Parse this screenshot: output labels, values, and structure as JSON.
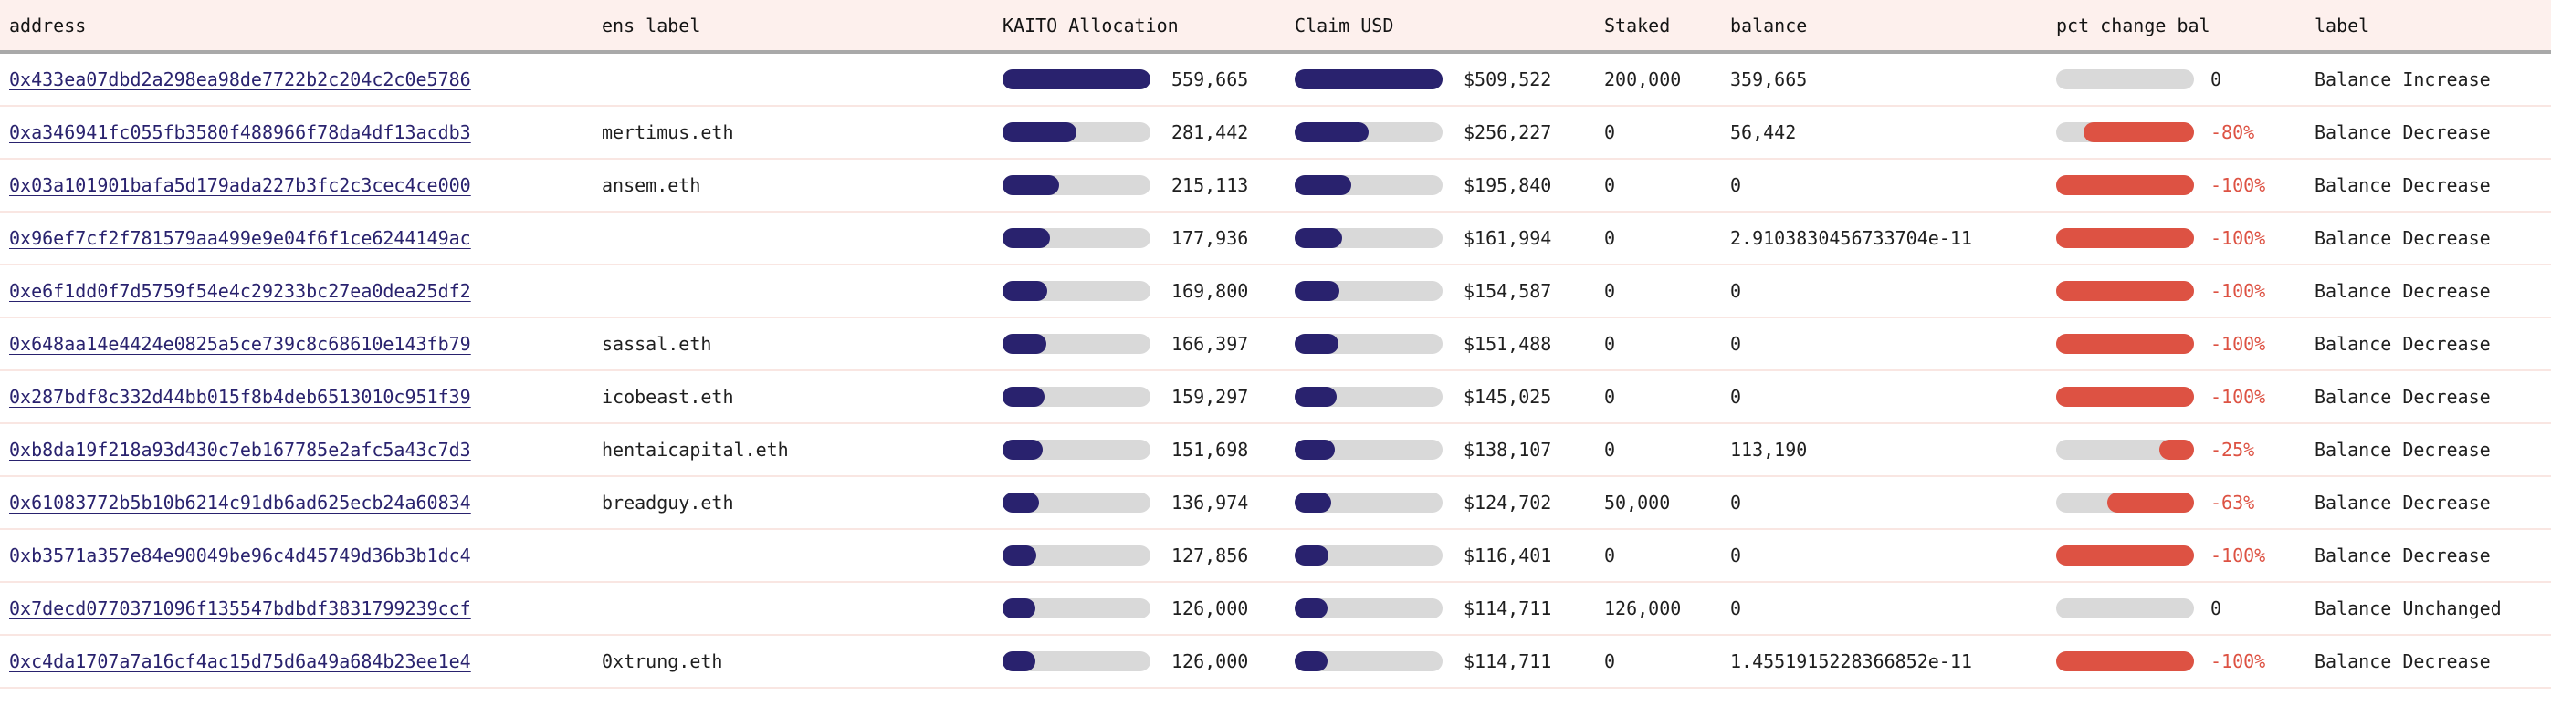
{
  "colors": {
    "header_bg": "#fdf0ed",
    "header_border": "#a9a9a9",
    "row_separator": "#f9e6e2",
    "bar_navy": "#29226e",
    "bar_track_gray": "#d9d9d9",
    "bar_red": "#dd5243",
    "link_navy": "#29226e",
    "text": "#1f1f1f"
  },
  "table": {
    "columns": [
      {
        "key": "address",
        "label": "address"
      },
      {
        "key": "ens_label",
        "label": "ens_label"
      },
      {
        "key": "kaito_allocation",
        "label": "KAITO Allocation"
      },
      {
        "key": "claim_usd",
        "label": "Claim USD"
      },
      {
        "key": "staked",
        "label": "Staked"
      },
      {
        "key": "balance",
        "label": "balance"
      },
      {
        "key": "pct_change_bal",
        "label": "pct_change_bal"
      },
      {
        "key": "label",
        "label": "label"
      }
    ],
    "rows": [
      {
        "address": "0x433ea07dbd2a298ea98de7722b2c204c2c0e5786",
        "ens_label": "",
        "kaito_display": "559,665",
        "kaito_value": 559665,
        "claim_display": "$509,522",
        "claim_value": 509522,
        "staked": "200,000",
        "balance": "359,665",
        "pct_display": "0",
        "pct_value": 0,
        "label": "Balance Increase"
      },
      {
        "address": "0xa346941fc055fb3580f488966f78da4df13acdb3",
        "ens_label": "mertimus.eth",
        "kaito_display": "281,442",
        "kaito_value": 281442,
        "claim_display": "$256,227",
        "claim_value": 256227,
        "staked": "0",
        "balance": "56,442",
        "pct_display": "-80%",
        "pct_value": -80,
        "label": "Balance Decrease"
      },
      {
        "address": "0x03a101901bafa5d179ada227b3fc2c3cec4ce000",
        "ens_label": "ansem.eth",
        "kaito_display": "215,113",
        "kaito_value": 215113,
        "claim_display": "$195,840",
        "claim_value": 195840,
        "staked": "0",
        "balance": "0",
        "pct_display": "-100%",
        "pct_value": -100,
        "label": "Balance Decrease"
      },
      {
        "address": "0x96ef7cf2f781579aa499e9e04f6f1ce6244149ac",
        "ens_label": "",
        "kaito_display": "177,936",
        "kaito_value": 177936,
        "claim_display": "$161,994",
        "claim_value": 161994,
        "staked": "0",
        "balance": "2.9103830456733704e-11",
        "pct_display": "-100%",
        "pct_value": -100,
        "label": "Balance Decrease"
      },
      {
        "address": "0xe6f1dd0f7d5759f54e4c29233bc27ea0dea25df2",
        "ens_label": "",
        "kaito_display": "169,800",
        "kaito_value": 169800,
        "claim_display": "$154,587",
        "claim_value": 154587,
        "staked": "0",
        "balance": "0",
        "pct_display": "-100%",
        "pct_value": -100,
        "label": "Balance Decrease"
      },
      {
        "address": "0x648aa14e4424e0825a5ce739c8c68610e143fb79",
        "ens_label": "sassal.eth",
        "kaito_display": "166,397",
        "kaito_value": 166397,
        "claim_display": "$151,488",
        "claim_value": 151488,
        "staked": "0",
        "balance": "0",
        "pct_display": "-100%",
        "pct_value": -100,
        "label": "Balance Decrease"
      },
      {
        "address": "0x287bdf8c332d44bb015f8b4deb6513010c951f39",
        "ens_label": "icobeast.eth",
        "kaito_display": "159,297",
        "kaito_value": 159297,
        "claim_display": "$145,025",
        "claim_value": 145025,
        "staked": "0",
        "balance": "0",
        "pct_display": "-100%",
        "pct_value": -100,
        "label": "Balance Decrease"
      },
      {
        "address": "0xb8da19f218a93d430c7eb167785e2afc5a43c7d3",
        "ens_label": "hentaicapital.eth",
        "kaito_display": "151,698",
        "kaito_value": 151698,
        "claim_display": "$138,107",
        "claim_value": 138107,
        "staked": "0",
        "balance": "113,190",
        "pct_display": "-25%",
        "pct_value": -25,
        "label": "Balance Decrease"
      },
      {
        "address": "0x61083772b5b10b6214c91db6ad625ecb24a60834",
        "ens_label": "breadguy.eth",
        "kaito_display": "136,974",
        "kaito_value": 136974,
        "claim_display": "$124,702",
        "claim_value": 124702,
        "staked": "50,000",
        "balance": "0",
        "pct_display": "-63%",
        "pct_value": -63,
        "label": "Balance Decrease"
      },
      {
        "address": "0xb3571a357e84e90049be96c4d45749d36b3b1dc4",
        "ens_label": "",
        "kaito_display": "127,856",
        "kaito_value": 127856,
        "claim_display": "$116,401",
        "claim_value": 116401,
        "staked": "0",
        "balance": "0",
        "pct_display": "-100%",
        "pct_value": -100,
        "label": "Balance Decrease"
      },
      {
        "address": "0x7decd0770371096f135547bdbdf3831799239ccf",
        "ens_label": "",
        "kaito_display": "126,000",
        "kaito_value": 126000,
        "claim_display": "$114,711",
        "claim_value": 114711,
        "staked": "126,000",
        "balance": "0",
        "pct_display": "0",
        "pct_value": 0,
        "label": "Balance Unchanged"
      },
      {
        "address": "0xc4da1707a7a16cf4ac15d75d6a49a684b23ee1e4",
        "ens_label": "0xtrung.eth",
        "kaito_display": "126,000",
        "kaito_value": 126000,
        "claim_display": "$114,711",
        "claim_value": 114711,
        "staked": "0",
        "balance": "1.4551915228366852e-11",
        "pct_display": "-100%",
        "pct_value": -100,
        "label": "Balance Decrease"
      }
    ]
  }
}
